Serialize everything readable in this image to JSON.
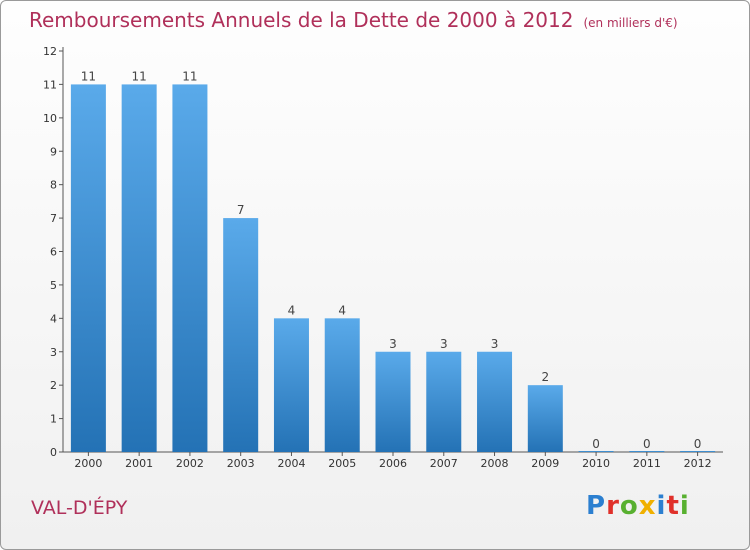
{
  "chart_data": {
    "type": "bar",
    "title": "Remboursements Annuels de la Dette de 2000 à 2012",
    "subtitle": "(en milliers d'€)",
    "categories": [
      "2000",
      "2001",
      "2002",
      "2003",
      "2004",
      "2005",
      "2006",
      "2007",
      "2008",
      "2009",
      "2010",
      "2011",
      "2012"
    ],
    "values": [
      11,
      11,
      11,
      7,
      4,
      4,
      3,
      3,
      3,
      2,
      0,
      0,
      0
    ],
    "ylim": [
      0,
      12
    ],
    "yticks": [
      0,
      1,
      2,
      3,
      4,
      5,
      6,
      7,
      8,
      9,
      10,
      11,
      12
    ],
    "grid": false,
    "colors": {
      "bar_top": "#5aaaea",
      "bar_bottom": "#2472b5",
      "title": "#b0305a"
    }
  },
  "footer": {
    "town": "VAL-D'ÉPY",
    "brand": {
      "letters": [
        "P",
        "r",
        "o",
        "x",
        "i",
        "t",
        "i"
      ],
      "colors": [
        "#2b7fd0",
        "#e0302a",
        "#58b030",
        "#f0b000",
        "#2b7fd0",
        "#e0302a",
        "#58b030"
      ]
    }
  }
}
